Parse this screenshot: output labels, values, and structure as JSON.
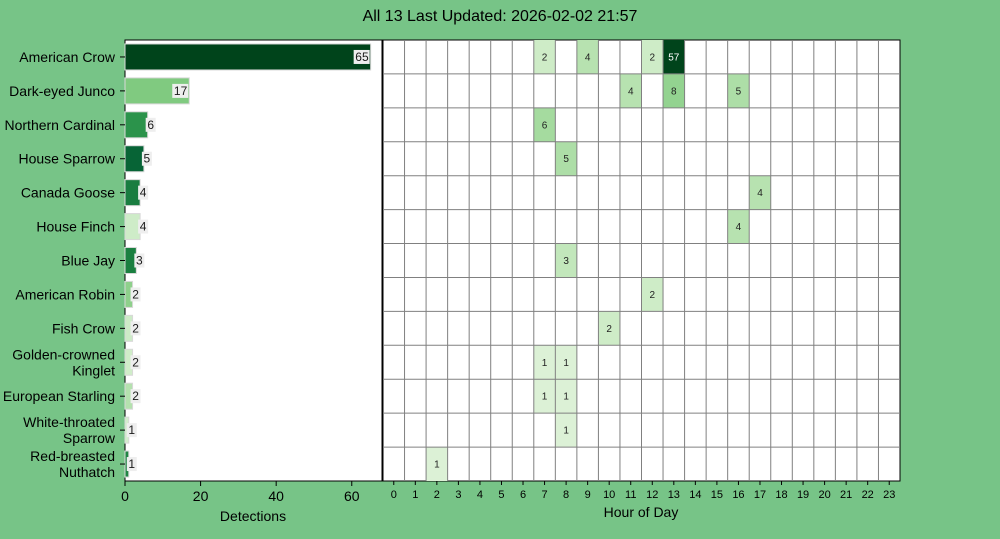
{
  "page_title": "All 13 Last Updated: 2026-02-02 21:57",
  "colors": {
    "background": "#77c487",
    "panel": "#ffffff",
    "grid": "#808080",
    "current_hour": "#f3f334"
  },
  "chart_data": [
    {
      "type": "bar",
      "orientation": "horizontal",
      "categories": [
        "American Crow",
        "Dark-eyed Junco",
        "Northern Cardinal",
        "House Sparrow",
        "Canada Goose",
        "House Finch",
        "Blue Jay",
        "American Robin",
        "Fish Crow",
        "Golden-crowned Kinglet",
        "European Starling",
        "White-throated Sparrow",
        "Red-breasted Nuthatch"
      ],
      "values": [
        65,
        17,
        6,
        5,
        4,
        4,
        3,
        2,
        2,
        2,
        2,
        1,
        1
      ],
      "xlabel": "Detections",
      "xticks": [
        0,
        20,
        40,
        60
      ],
      "xlim": [
        0,
        68
      ],
      "grid": false
    },
    {
      "type": "heatmap",
      "xlabel": "Hour of Day",
      "hours": [
        0,
        1,
        2,
        3,
        4,
        5,
        6,
        7,
        8,
        9,
        10,
        11,
        12,
        13,
        14,
        15,
        16,
        17,
        18,
        19,
        20,
        21,
        22,
        23
      ],
      "highlight_hour": 21,
      "rows": [
        {
          "species": "American Crow",
          "cells": [
            [
              7,
              2
            ],
            [
              9,
              4
            ],
            [
              12,
              2
            ],
            [
              13,
              57
            ]
          ]
        },
        {
          "species": "Dark-eyed Junco",
          "cells": [
            [
              11,
              4
            ],
            [
              13,
              8
            ],
            [
              16,
              5
            ]
          ]
        },
        {
          "species": "Northern Cardinal",
          "cells": [
            [
              7,
              6
            ]
          ]
        },
        {
          "species": "House Sparrow",
          "cells": [
            [
              8,
              5
            ]
          ]
        },
        {
          "species": "Canada Goose",
          "cells": [
            [
              17,
              4
            ]
          ]
        },
        {
          "species": "House Finch",
          "cells": [
            [
              16,
              4
            ]
          ]
        },
        {
          "species": "Blue Jay",
          "cells": [
            [
              8,
              3
            ]
          ]
        },
        {
          "species": "American Robin",
          "cells": [
            [
              12,
              2
            ]
          ]
        },
        {
          "species": "Fish Crow",
          "cells": [
            [
              10,
              2
            ]
          ]
        },
        {
          "species": "Golden-crowned Kinglet",
          "cells": [
            [
              7,
              1
            ],
            [
              8,
              1
            ]
          ]
        },
        {
          "species": "European Starling",
          "cells": [
            [
              7,
              1
            ],
            [
              8,
              1
            ]
          ]
        },
        {
          "species": "White-throated Sparrow",
          "cells": [
            [
              8,
              1
            ]
          ]
        },
        {
          "species": "Red-breasted Nuthatch",
          "cells": [
            [
              2,
              1
            ]
          ]
        }
      ]
    }
  ]
}
